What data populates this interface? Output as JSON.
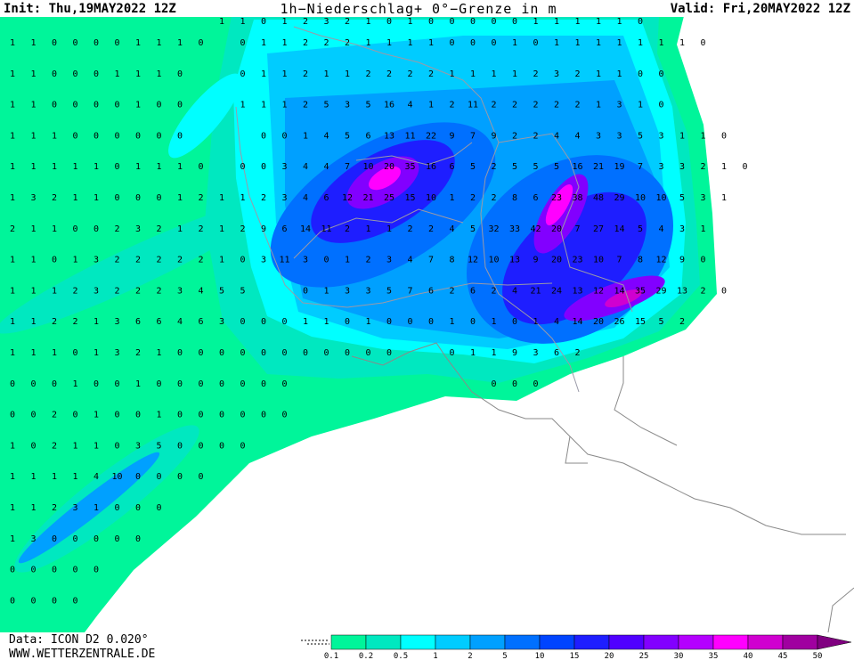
{
  "header": {
    "init": "Init: Thu,19MAY2022 12Z",
    "title": "1h−Niederschlag+ 0°−Grenze in m",
    "valid": "Valid: Fri,20MAY2022 12Z"
  },
  "footer": {
    "data": "Data: ICON D2 0.020°",
    "site": "WWW.WETTERZENTRALE.DE"
  },
  "legend": {
    "labels": [
      "0.1",
      "0.2",
      "0.5",
      "1",
      "2",
      "5",
      "10",
      "15",
      "20",
      "25",
      "30",
      "35",
      "40",
      "45",
      "50"
    ],
    "colors": [
      "#00f59a",
      "#00e8c0",
      "#00ffff",
      "#00ccff",
      "#00a0ff",
      "#0070ff",
      "#0044ff",
      "#1e1eff",
      "#5000ff",
      "#8200ff",
      "#b400ff",
      "#ff00ff",
      "#d000d0",
      "#a000a0",
      "#800080"
    ]
  },
  "grid": {
    "rows": [
      [
        null,
        null,
        null,
        null,
        null,
        null,
        null,
        null,
        null,
        null,
        1,
        1,
        0,
        1,
        2,
        3,
        2,
        1,
        0,
        1,
        0,
        0,
        0,
        0,
        0,
        1,
        1,
        1,
        1,
        1,
        0
      ],
      [
        1,
        1,
        0,
        0,
        0,
        0,
        1,
        1,
        1,
        0,
        null,
        0,
        1,
        1,
        2,
        2,
        2,
        1,
        1,
        1,
        1,
        0,
        0,
        0,
        1,
        0,
        1,
        1,
        1,
        1,
        1,
        1,
        1,
        0
      ],
      [
        1,
        1,
        0,
        0,
        0,
        1,
        1,
        1,
        0,
        null,
        null,
        0,
        1,
        1,
        2,
        1,
        1,
        2,
        2,
        2,
        2,
        1,
        1,
        1,
        1,
        2,
        3,
        2,
        1,
        1,
        0,
        0
      ],
      [
        1,
        1,
        0,
        0,
        0,
        0,
        1,
        0,
        0,
        null,
        null,
        1,
        1,
        1,
        2,
        5,
        3,
        5,
        16,
        4,
        1,
        2,
        11,
        2,
        2,
        2,
        2,
        2,
        1,
        3,
        1,
        0
      ],
      [
        1,
        1,
        1,
        0,
        0,
        0,
        0,
        0,
        0,
        null,
        null,
        null,
        0,
        0,
        1,
        4,
        5,
        6,
        13,
        11,
        22,
        9,
        7,
        9,
        2,
        2,
        4,
        4,
        3,
        3,
        5,
        3,
        1,
        1,
        0
      ],
      [
        1,
        1,
        1,
        1,
        1,
        0,
        1,
        1,
        1,
        0,
        null,
        0,
        0,
        3,
        4,
        4,
        7,
        10,
        20,
        35,
        16,
        6,
        5,
        2,
        5,
        5,
        5,
        16,
        21,
        19,
        7,
        3,
        3,
        2,
        1,
        0
      ],
      [
        1,
        3,
        2,
        1,
        1,
        0,
        0,
        0,
        1,
        2,
        1,
        1,
        2,
        3,
        4,
        6,
        12,
        21,
        25,
        15,
        10,
        1,
        2,
        2,
        8,
        6,
        23,
        38,
        48,
        29,
        10,
        10,
        5,
        3,
        1
      ],
      [
        2,
        1,
        1,
        0,
        0,
        2,
        3,
        2,
        1,
        2,
        1,
        2,
        9,
        6,
        14,
        11,
        2,
        1,
        1,
        2,
        2,
        4,
        5,
        32,
        33,
        42,
        20,
        7,
        27,
        14,
        5,
        4,
        3,
        1
      ],
      [
        1,
        1,
        0,
        1,
        3,
        2,
        2,
        2,
        2,
        2,
        1,
        0,
        3,
        11,
        3,
        0,
        1,
        2,
        3,
        4,
        7,
        8,
        12,
        10,
        13,
        9,
        20,
        23,
        10,
        7,
        8,
        12,
        9,
        0
      ],
      [
        1,
        1,
        1,
        2,
        3,
        2,
        2,
        2,
        3,
        4,
        5,
        5,
        null,
        null,
        0,
        1,
        3,
        3,
        5,
        7,
        6,
        2,
        6,
        2,
        4,
        21,
        24,
        13,
        12,
        14,
        35,
        29,
        13,
        2,
        0
      ],
      [
        1,
        1,
        2,
        2,
        1,
        3,
        6,
        6,
        4,
        6,
        3,
        0,
        0,
        0,
        1,
        1,
        0,
        1,
        0,
        0,
        0,
        1,
        0,
        1,
        0,
        1,
        4,
        14,
        20,
        26,
        15,
        5,
        2
      ],
      [
        1,
        1,
        1,
        0,
        1,
        3,
        2,
        1,
        0,
        0,
        0,
        0,
        0,
        0,
        0,
        0,
        0,
        0,
        0,
        null,
        null,
        0,
        1,
        1,
        9,
        3,
        6,
        2
      ],
      [
        0,
        0,
        0,
        1,
        0,
        0,
        1,
        0,
        0,
        0,
        0,
        0,
        0,
        0,
        null,
        null,
        null,
        null,
        null,
        null,
        null,
        null,
        null,
        0,
        0,
        0
      ],
      [
        0,
        0,
        2,
        0,
        1,
        0,
        0,
        1,
        0,
        0,
        0,
        0,
        0,
        0
      ],
      [
        1,
        0,
        2,
        1,
        1,
        0,
        3,
        5,
        0,
        0,
        0,
        0
      ],
      [
        1,
        1,
        1,
        1,
        4,
        10,
        0,
        0,
        0,
        0
      ],
      [
        1,
        1,
        2,
        3,
        1,
        0,
        0,
        0
      ],
      [
        1,
        3,
        0,
        0,
        0,
        0,
        0
      ],
      [
        0,
        0,
        0,
        0,
        0
      ],
      [
        0,
        0,
        0,
        0
      ]
    ]
  }
}
